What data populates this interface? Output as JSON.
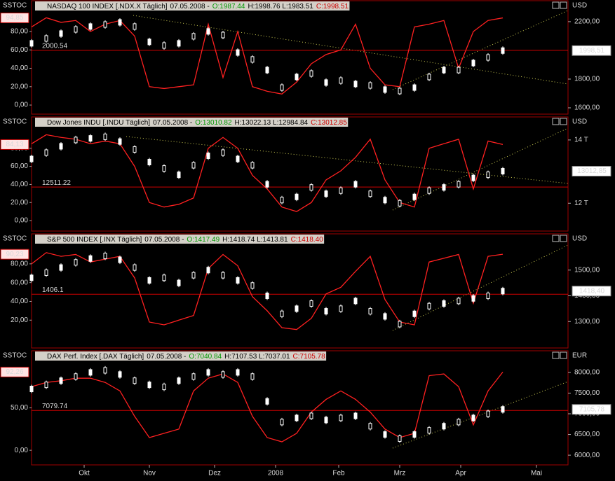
{
  "chart_data": [
    {
      "type": "line",
      "title": "NASDAQ 100 INDEX [.NDX.X  Täglich]",
      "date": "07.05.2008 -",
      "open": "O:1987.44",
      "high_low": "H:1998.76 L:1983.51",
      "close": "C:1998.51",
      "indicator": "SSTOC",
      "unit": "USD",
      "x": [
        0,
        7,
        14,
        21,
        28,
        35,
        42,
        49,
        56,
        63,
        70,
        77,
        84,
        91,
        98,
        105,
        112,
        119,
        126,
        133,
        140,
        147,
        154,
        161,
        168,
        175,
        182,
        189,
        196,
        203,
        210,
        217,
        224
      ],
      "xlim": [
        0,
        255
      ],
      "ylim": [
        -9.1,
        100.6
      ],
      "yticks": [
        {
          "value": 0,
          "label": "0,00"
        },
        {
          "value": 20,
          "label": "20,00"
        },
        {
          "value": 40,
          "label": "40,00"
        },
        {
          "value": 60,
          "label": "60,00"
        },
        {
          "value": 80,
          "label": "80,00"
        }
      ],
      "y2lim": [
        1561,
        2263
      ],
      "y2ticks": [
        {
          "value": 1600,
          "label": "1600,00"
        },
        {
          "value": 1800,
          "label": "1800,00"
        },
        {
          "value": 2200,
          "label": "2200,00"
        }
      ],
      "series": [
        {
          "color": "#ff2020",
          "values": [
            85,
            95,
            90,
            92,
            80,
            88,
            92,
            75,
            20,
            18,
            20,
            22,
            88,
            30,
            80,
            20,
            15,
            12,
            25,
            45,
            55,
            60,
            88,
            40,
            22,
            20,
            85,
            88,
            92,
            40,
            80,
            92,
            94.85
          ]
        },
        {
          "color": "#ffffff",
          "axis": "y2",
          "values": [
            2049,
            2083,
            2117,
            2146,
            2166,
            2180,
            2195,
            2166,
            2059,
            2034,
            2049,
            2098,
            2132,
            2107,
            1985,
            1937,
            1863,
            1741,
            1815,
            1839,
            1776,
            1790,
            1766,
            1756,
            1727,
            1717,
            1741,
            1815,
            1863,
            1863,
            1912,
            1951,
            1998.51
          ]
        }
      ],
      "hline": 2000.54,
      "stoch_badge": {
        "value": 94.85,
        "label": "94,85"
      },
      "price_badge": {
        "value": 1998.51,
        "label": "1998,51"
      }
    },
    {
      "type": "line",
      "title": "Dow Jones INDU [.INDU  Täglich]",
      "date": "07.05.2008 -",
      "open": "O:13010.82",
      "high_low": "H:13022.13 L:12984.84",
      "close": "C:13012.85",
      "indicator": "SSTOC",
      "unit": "USD",
      "x": [
        0,
        7,
        14,
        21,
        28,
        35,
        42,
        49,
        56,
        63,
        70,
        77,
        84,
        91,
        98,
        105,
        112,
        119,
        126,
        133,
        140,
        147,
        154,
        161,
        168,
        175,
        182,
        189,
        196,
        203,
        210,
        217,
        224
      ],
      "xlim": [
        0,
        255
      ],
      "ylim": [
        -10.8,
        101.5
      ],
      "yticks": [
        {
          "value": 0,
          "label": "0,00"
        },
        {
          "value": 20,
          "label": "20,00"
        },
        {
          "value": 40,
          "label": "40,00"
        },
        {
          "value": 60,
          "label": "60,00"
        },
        {
          "value": 80,
          "label": "80,00"
        }
      ],
      "y2lim": [
        11143,
        14352
      ],
      "y2ticks": [
        {
          "value": 12000,
          "label": "12 T"
        },
        {
          "value": 14000,
          "label": "14 T"
        }
      ],
      "series": [
        {
          "color": "#ff2020",
          "values": [
            85,
            95,
            92,
            90,
            85,
            88,
            85,
            60,
            20,
            15,
            18,
            25,
            80,
            92,
            80,
            50,
            35,
            15,
            10,
            20,
            45,
            55,
            70,
            90,
            45,
            20,
            15,
            80,
            85,
            90,
            35,
            88,
            84.13
          ]
        },
        {
          "color": "#ffffff",
          "axis": "y2",
          "values": [
            13400,
            13600,
            13800,
            14000,
            14050,
            14100,
            13950,
            13700,
            13300,
            13100,
            12900,
            13200,
            13500,
            13600,
            13400,
            13200,
            12600,
            12100,
            12200,
            12500,
            12300,
            12400,
            12600,
            12300,
            12100,
            12000,
            12200,
            12400,
            12500,
            12600,
            12800,
            12900,
            13012.85
          ]
        }
      ],
      "hline": 12511.22,
      "stoch_badge": {
        "value": 84.13,
        "label": "84,13"
      },
      "price_badge": {
        "value": 13012.85,
        "label": "13012,85"
      }
    },
    {
      "type": "line",
      "title": "S&P 500 INDEX [.INX  Täglich]",
      "date": "07.05.2008 -",
      "open": "O:1417.49",
      "high_low": "H:1418.74 L:1413.81",
      "close": "C:1418.40",
      "indicator": "SSTOC",
      "unit": "USD",
      "x": [
        0,
        7,
        14,
        21,
        28,
        35,
        42,
        49,
        56,
        63,
        70,
        77,
        84,
        91,
        98,
        105,
        112,
        119,
        126,
        133,
        140,
        147,
        154,
        161,
        168,
        175,
        182,
        189,
        196,
        203,
        210,
        217,
        224
      ],
      "xlim": [
        0,
        255
      ],
      "ylim": [
        -8.9,
        99.3
      ],
      "yticks": [
        {
          "value": 20,
          "label": "20,00"
        },
        {
          "value": 40,
          "label": "40,00"
        },
        {
          "value": 60,
          "label": "60,00"
        },
        {
          "value": 80,
          "label": "80,00"
        }
      ],
      "y2lim": [
        1200,
        1594.6
      ],
      "y2ticks": [
        {
          "value": 1300,
          "label": "1300,00"
        },
        {
          "value": 1400,
          "label": "1400,00"
        },
        {
          "value": 1500,
          "label": "1500,00"
        }
      ],
      "series": [
        {
          "color": "#ff2020",
          "values": [
            80,
            92,
            88,
            90,
            82,
            85,
            88,
            65,
            18,
            15,
            20,
            25,
            75,
            90,
            78,
            45,
            30,
            12,
            10,
            22,
            48,
            55,
            72,
            88,
            42,
            18,
            15,
            82,
            86,
            90,
            38,
            88,
            90.23
          ]
        },
        {
          "color": "#ffffff",
          "axis": "y2",
          "values": [
            1470,
            1490,
            1510,
            1530,
            1545,
            1555,
            1540,
            1510,
            1460,
            1470,
            1450,
            1480,
            1500,
            1480,
            1460,
            1440,
            1400,
            1330,
            1350,
            1370,
            1340,
            1350,
            1380,
            1340,
            1320,
            1290,
            1330,
            1360,
            1370,
            1380,
            1390,
            1400,
            1418.4
          ]
        }
      ],
      "hline": 1406.1,
      "stoch_badge": {
        "value": 90.23,
        "label": "90,23"
      },
      "price_badge": {
        "value": 1418.4,
        "label": "1418,40"
      }
    },
    {
      "type": "line",
      "title": "DAX Perf. Index [.DAX  Täglich]",
      "date": "07.05.2008 -",
      "open": "O:7040.84",
      "high_low": "H:7107.53 L:7037.01",
      "close": "C:7105.78",
      "indicator": "SSTOC",
      "unit": "EUR",
      "x": [
        0,
        7,
        14,
        21,
        28,
        35,
        42,
        49,
        56,
        63,
        70,
        77,
        84,
        91,
        98,
        105,
        112,
        119,
        126,
        133,
        140,
        147,
        154,
        161,
        168,
        175,
        182,
        189,
        196,
        203,
        210,
        217,
        224
      ],
      "xlim": [
        0,
        255
      ],
      "ylim": [
        -16.4,
        103.3
      ],
      "yticks": [
        {
          "value": 0,
          "label": "0,00"
        },
        {
          "value": 50,
          "label": "50,00"
        }
      ],
      "y2lim": [
        5782,
        8235
      ],
      "y2ticks": [
        {
          "value": 6000,
          "label": "6000,00"
        },
        {
          "value": 6500,
          "label": "6500,00"
        },
        {
          "value": 7000,
          "label": "7000,00"
        },
        {
          "value": 7500,
          "label": "7500,00"
        },
        {
          "value": 8000,
          "label": "8000,00"
        }
      ],
      "series": [
        {
          "color": "#ff2020",
          "values": [
            75,
            80,
            82,
            85,
            85,
            80,
            70,
            40,
            15,
            20,
            25,
            70,
            85,
            90,
            80,
            40,
            15,
            10,
            20,
            45,
            60,
            70,
            60,
            45,
            25,
            15,
            20,
            88,
            90,
            75,
            30,
            70,
            92.26
          ]
        },
        {
          "color": "#ffffff",
          "axis": "y2",
          "values": [
            7600,
            7700,
            7800,
            7900,
            8000,
            8050,
            7950,
            7800,
            7700,
            7650,
            7800,
            7900,
            8000,
            7950,
            8000,
            7900,
            7300,
            6800,
            6900,
            6950,
            6850,
            6900,
            6950,
            6700,
            6500,
            6400,
            6500,
            6600,
            6700,
            6800,
            6900,
            7000,
            7105.78
          ]
        }
      ],
      "hline": 7079.74,
      "stoch_badge": {
        "value": 92.26,
        "label": "92,26"
      },
      "price_badge": {
        "value": 7105.78,
        "label": "7105,78"
      },
      "xticks": [
        {
          "value": 25,
          "label": "Okt"
        },
        {
          "value": 56,
          "label": "Nov"
        },
        {
          "value": 87,
          "label": "Dez"
        },
        {
          "value": 116,
          "label": "2008"
        },
        {
          "value": 146,
          "label": "Feb"
        },
        {
          "value": 175,
          "label": "Mrz"
        },
        {
          "value": 204,
          "label": "Apr"
        },
        {
          "value": 240,
          "label": "Mai"
        }
      ]
    }
  ]
}
